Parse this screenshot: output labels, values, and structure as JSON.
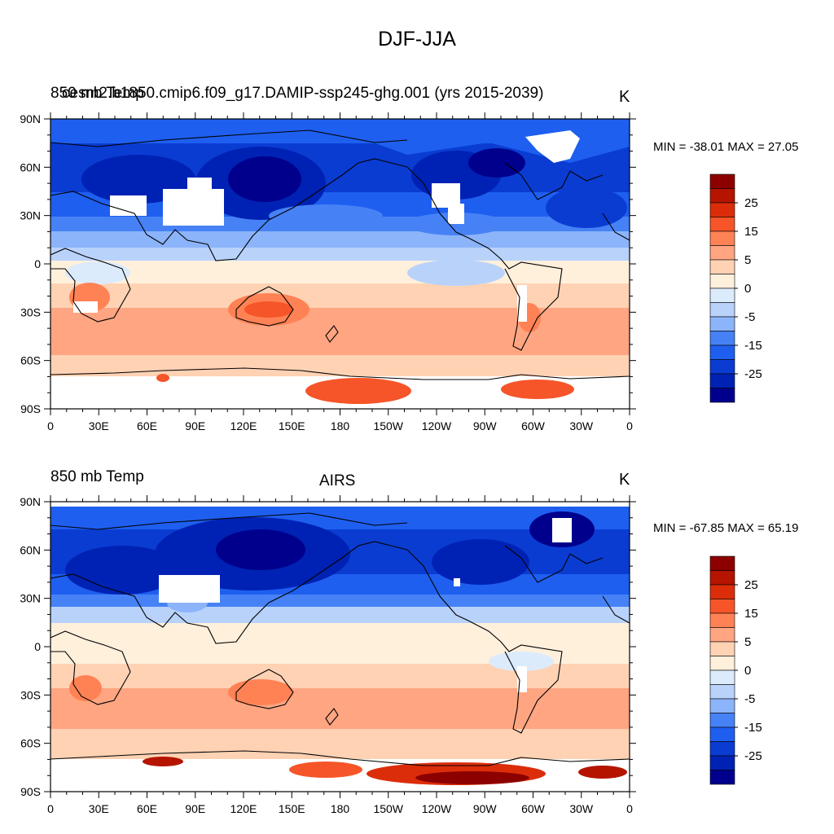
{
  "title": "DJF-JJA",
  "colors": {
    "levels": [
      "#00008c",
      "#0022b4",
      "#0a3cd2",
      "#1e5ff0",
      "#4682f5",
      "#8cb4fa",
      "#b9d2fa",
      "#dcebfc",
      "#fff0dc",
      "#ffd2b4",
      "#ffa582",
      "#ff8255",
      "#f55528",
      "#dc2d0a",
      "#b41400",
      "#8c0000"
    ],
    "coast": "#000000",
    "missing": "#ffffff"
  },
  "colorbar": {
    "labels": [
      "25",
      "15",
      "5",
      "0",
      "-5",
      "-15",
      "-25"
    ]
  },
  "axes": {
    "lat_labels": [
      "90N",
      "60N",
      "30N",
      "0",
      "30S",
      "60S",
      "90S"
    ],
    "lon_labels": [
      "0",
      "30E",
      "60E",
      "90E",
      "120E",
      "150E",
      "180",
      "150W",
      "120W",
      "90W",
      "60W",
      "30W",
      "0"
    ]
  },
  "panels": [
    {
      "left_string": "850 mb Temp",
      "center_string": "cesm2.b1850.cmip6.f09_g17.DAMIP-ssp245-ghg.001 (yrs 2015-2039)",
      "right_string": "K",
      "minmax": "MIN = -38.01 MAX =  27.05"
    },
    {
      "left_string": "850 mb Temp",
      "center_string": "AIRS",
      "right_string": "K",
      "minmax": "MIN = -67.85 MAX =  65.19"
    }
  ]
}
